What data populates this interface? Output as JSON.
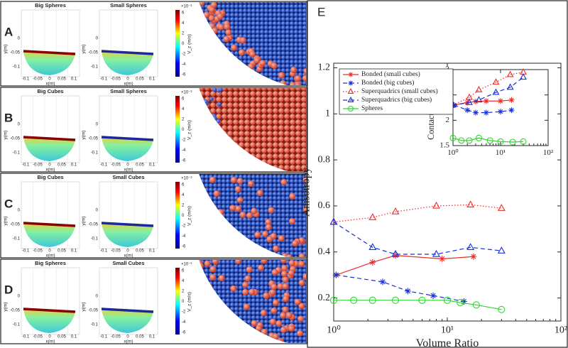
{
  "panels": [
    {
      "label": "A",
      "titles": [
        "Big Spheres",
        "Small Spheres"
      ]
    },
    {
      "label": "B",
      "titles": [
        "Big Cubes",
        "Small Spheres"
      ]
    },
    {
      "label": "C",
      "titles": [
        "Big Cubes",
        "Small Cubes"
      ]
    },
    {
      "label": "D",
      "titles": [
        "Big Spheres",
        "Small Cubes"
      ]
    }
  ],
  "panel_axes": {
    "x_label": "x(m)",
    "y_label": "y(m)",
    "x_ticks": [
      "-0.1",
      "-0.05",
      "0",
      "0.05",
      "0.1"
    ],
    "y_ticks": [
      "0",
      "-0.05",
      "-0.1"
    ],
    "colorbar_label": "V_z (m/s)",
    "colorbar_exponent": "×10⁻³",
    "colorbar_ticks": [
      "6",
      "4",
      "2",
      "0",
      "-2",
      "-4",
      "-6"
    ]
  },
  "chart_data": [
    {
      "type": "line",
      "panel_label": "E",
      "x_label": "Volume Ratio",
      "y_label": "Anisotropy",
      "xscale": "log",
      "xlim": [
        1,
        100
      ],
      "xticks": [
        {
          "value": 1,
          "label": "10⁰"
        },
        {
          "value": 10,
          "label": "10¹"
        },
        {
          "value": 100,
          "label": "10²"
        }
      ],
      "ylim": [
        0.1,
        1.22
      ],
      "yticks": [
        0.2,
        0.4,
        0.6,
        0.8,
        1,
        1.2
      ],
      "legend": "upper left",
      "series": [
        {
          "name": "Bonded (small cubes)",
          "color": "#ee2b2b",
          "marker": "star",
          "line": "solid",
          "x": [
            1.05,
            2.2,
            3.5,
            9,
            17
          ],
          "values": [
            0.3,
            0.355,
            0.385,
            0.37,
            0.38
          ]
        },
        {
          "name": "Bonded (big cubes)",
          "color": "#1c2fd8",
          "marker": "star",
          "line": "dashed",
          "x": [
            1.05,
            2.7,
            4.5,
            7.5,
            14
          ],
          "values": [
            0.3,
            0.27,
            0.23,
            0.21,
            0.185
          ]
        },
        {
          "name": "Superquadrics (small cubes)",
          "color": "#ee2b2b",
          "marker": "triangle",
          "line": "dotted",
          "x": [
            1,
            2.2,
            3.5,
            8,
            16,
            30
          ],
          "values": [
            0.53,
            0.55,
            0.575,
            0.6,
            0.605,
            0.59
          ]
        },
        {
          "name": "Superquadrics (big cubes)",
          "color": "#1c2fd8",
          "marker": "triangle",
          "line": "dashed",
          "x": [
            1,
            2.2,
            3.5,
            8,
            16,
            30
          ],
          "values": [
            0.53,
            0.42,
            0.39,
            0.39,
            0.42,
            0.405
          ]
        },
        {
          "name": "Spheres",
          "color": "#2fd62f",
          "marker": "circle",
          "line": "solid",
          "x": [
            1,
            1.5,
            2.2,
            3.5,
            6,
            10,
            13,
            18,
            30
          ],
          "values": [
            0.19,
            0.19,
            0.19,
            0.19,
            0.19,
            0.19,
            0.18,
            0.17,
            0.15
          ]
        }
      ]
    },
    {
      "type": "line",
      "y_label": "Contact Number Z",
      "xscale": "log",
      "xlim": [
        1,
        100
      ],
      "xticks": [
        {
          "value": 1,
          "label": "10⁰"
        },
        {
          "value": 10,
          "label": "10¹"
        },
        {
          "value": 100,
          "label": "10²"
        }
      ],
      "ylim": [
        1.5,
        3
      ],
      "yticks": [
        1.5,
        2,
        2.5,
        3
      ],
      "series": [
        {
          "color": "#ee2b2b",
          "marker": "star",
          "line": "solid",
          "x": [
            1.05,
            2,
            3,
            5,
            10,
            17
          ],
          "values": [
            2.3,
            2.35,
            2.37,
            2.38,
            2.38,
            2.4
          ]
        },
        {
          "color": "#1c2fd8",
          "marker": "star",
          "line": "dashed",
          "x": [
            1.05,
            2,
            3,
            5,
            10,
            17
          ],
          "values": [
            2.3,
            2.2,
            2.15,
            2.15,
            2.17,
            2.2
          ]
        },
        {
          "color": "#ee2b2b",
          "marker": "triangle",
          "line": "dotted",
          "x": [
            1,
            2.2,
            3.5,
            8,
            16,
            30
          ],
          "values": [
            2.3,
            2.45,
            2.6,
            2.75,
            2.9,
            2.95
          ]
        },
        {
          "color": "#1c2fd8",
          "marker": "triangle",
          "line": "dashed",
          "x": [
            1,
            2.2,
            3.5,
            8,
            16,
            30
          ],
          "values": [
            2.3,
            2.35,
            2.4,
            2.55,
            2.65,
            2.85
          ]
        },
        {
          "color": "#2fd62f",
          "marker": "circle",
          "line": "solid",
          "x": [
            1,
            1.5,
            2.2,
            3.5,
            6,
            10,
            18,
            30
          ],
          "values": [
            1.65,
            1.6,
            1.6,
            1.65,
            1.6,
            1.58,
            1.57,
            1.58
          ]
        }
      ]
    }
  ]
}
